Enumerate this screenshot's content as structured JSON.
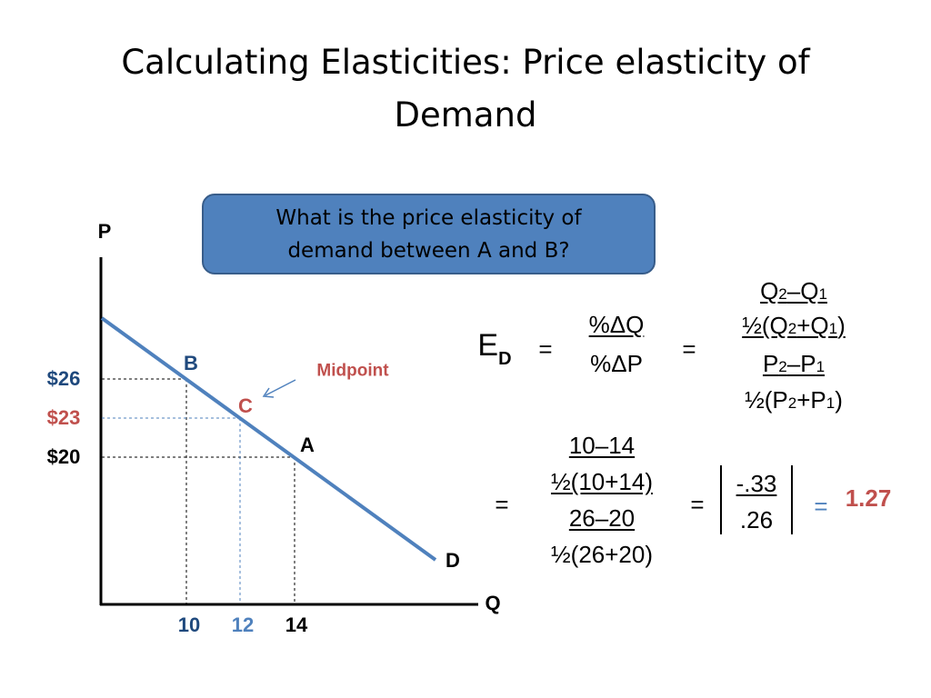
{
  "title": "Calculating Elasticities: Price elasticity of Demand",
  "question": "What is the price elasticity of demand between A and B?",
  "graph": {
    "y_axis_label": "P",
    "x_axis_label": "Q",
    "curve_label": "D",
    "annotation": "Midpoint",
    "points": [
      {
        "label": "B",
        "price_label": "$26",
        "quantity": 10
      },
      {
        "label": "C",
        "price_label": "$23",
        "quantity": 12
      },
      {
        "label": "A",
        "price_label": "$20",
        "quantity": 14
      }
    ]
  },
  "general_formula": {
    "lhs": "E",
    "lhs_sub": "D",
    "eq1": "=",
    "ratio_top": "%ΔQ",
    "ratio_bottom": "%ΔP",
    "eq2": "=",
    "rows": [
      [
        "Q",
        "2",
        "–Q",
        "1"
      ],
      [
        "½(Q",
        "2",
        "+Q",
        "1",
        ")"
      ],
      [
        "P",
        "2",
        "–P",
        "1"
      ],
      [
        "½(P",
        "2",
        "+P",
        "1",
        ")"
      ]
    ]
  },
  "computation": {
    "eq1": "=",
    "rows": [
      "10–14",
      "½(10+14)",
      "26–20",
      "½(26+20)"
    ],
    "eq2": "=",
    "abs_top": "-.33",
    "abs_bottom": ".26",
    "eq3": "=",
    "result": "1.27"
  }
}
